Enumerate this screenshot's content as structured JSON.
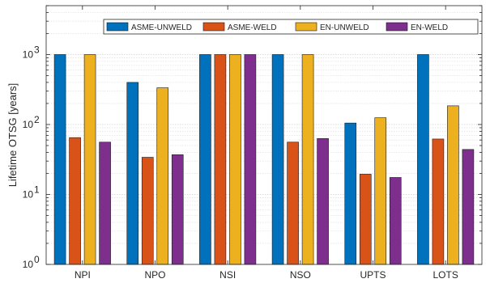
{
  "chart_data": {
    "type": "bar",
    "title": "",
    "xlabel": "",
    "ylabel": "Lifetime OTSG [years]",
    "yscale": "log",
    "ylim": [
      1,
      5000
    ],
    "y_tick_labels": [
      "10",
      "10",
      "10",
      "10"
    ],
    "y_tick_exponents": [
      "0",
      "1",
      "2",
      "3"
    ],
    "y_tick_values": [
      1,
      10,
      100,
      1000
    ],
    "grid": true,
    "legend_position": "top-right",
    "categories": [
      "NPI",
      "NPO",
      "NSI",
      "NSO",
      "UPTS",
      "LOTS"
    ],
    "series": [
      {
        "name": "ASME-UNWELD",
        "color": "#0072BD",
        "values": [
          1000,
          400,
          1000,
          1000,
          105,
          1000
        ]
      },
      {
        "name": "ASME-WELD",
        "color": "#D95319",
        "values": [
          65,
          34,
          1000,
          56,
          19.5,
          62
        ]
      },
      {
        "name": "EN-UNWELD",
        "color": "#EDB120",
        "values": [
          1000,
          335,
          1000,
          1000,
          125,
          185
        ]
      },
      {
        "name": "EN-WELD",
        "color": "#7E2F8E",
        "values": [
          56,
          37,
          1000,
          63,
          17.5,
          44
        ]
      }
    ]
  }
}
